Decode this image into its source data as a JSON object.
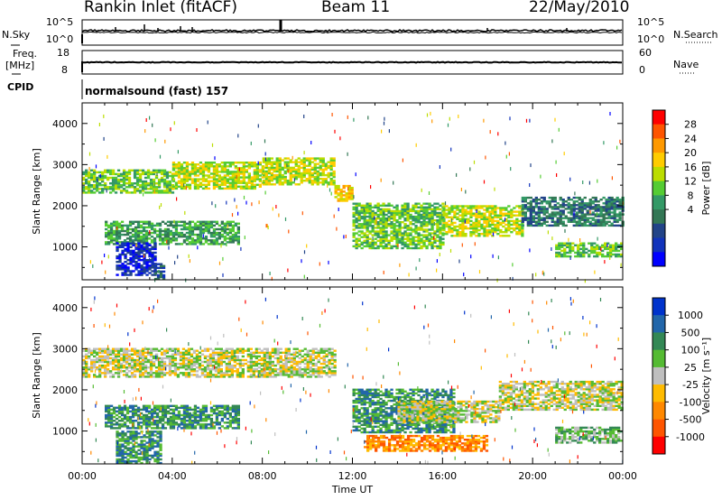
{
  "header": {
    "station": "Rankin Inlet (fitACF)",
    "beam": "Beam 11",
    "date": "22/May/2010"
  },
  "strips": {
    "nsky_label": "N.Sky",
    "nsky_ticks": [
      "10^5",
      "10^0"
    ],
    "nsearch_label": "N.Search",
    "nsearch_ticks": [
      "10^5",
      "10^0"
    ],
    "freq_label": "Freq.",
    "freq_unit": "[MHz]",
    "freq_ticks": [
      "18",
      "8"
    ],
    "nave_label": "Nave",
    "nave_ticks": [
      "60",
      "0"
    ],
    "cpid_label": "CPID",
    "cpid_value": "normalsound (fast) 157"
  },
  "colors": {
    "frame": "#000000",
    "background": "#ffffff",
    "ground_scatter": "#bfbfbf"
  },
  "chart_data": [
    {
      "type": "heatmap",
      "name": "power",
      "ylabel": "Slant Range [km]",
      "ylim": [
        200,
        4500
      ],
      "yticks": [
        1000,
        2000,
        3000,
        4000
      ],
      "xlim": [
        0,
        24
      ],
      "xticks": [
        "00:00",
        "04:00",
        "08:00",
        "12:00",
        "16:00",
        "20:00",
        "00:00"
      ],
      "colorbar_label": "Power [dB]",
      "colorbar_ticks": [
        "28",
        "24",
        "20",
        "16",
        "12",
        "8",
        "4"
      ],
      "colorbar_colors": [
        "#ff0000",
        "#ff5500",
        "#ff9900",
        "#ffcc00",
        "#bbdd00",
        "#55cc33",
        "#339966",
        "#337755",
        "#224488",
        "#1133bb",
        "#0000ff"
      ],
      "bands": [
        {
          "t0": 0.0,
          "t1": 4.0,
          "r0": 2300,
          "r1": 2850,
          "level": 5
        },
        {
          "t0": 4.0,
          "t1": 8.0,
          "r0": 2400,
          "r1": 3050,
          "level": 4
        },
        {
          "t0": 8.0,
          "t1": 11.2,
          "r0": 2500,
          "r1": 3150,
          "level": 4
        },
        {
          "t0": 11.2,
          "t1": 12.0,
          "r0": 2100,
          "r1": 2500,
          "level": 3
        },
        {
          "t0": 1.0,
          "t1": 7.0,
          "r0": 1050,
          "r1": 1600,
          "level": 6
        },
        {
          "t0": 1.5,
          "t1": 3.2,
          "r0": 300,
          "r1": 1100,
          "level": 9
        },
        {
          "t0": 3.2,
          "t1": 3.6,
          "r0": 200,
          "r1": 600,
          "level": 8
        },
        {
          "t0": 12.0,
          "t1": 16.0,
          "r0": 950,
          "r1": 2050,
          "level": 5
        },
        {
          "t0": 16.0,
          "t1": 19.5,
          "r0": 1250,
          "r1": 2000,
          "level": 4
        },
        {
          "t0": 19.5,
          "t1": 24.0,
          "r0": 1500,
          "r1": 2200,
          "level": 7
        },
        {
          "t0": 21.0,
          "t1": 24.0,
          "r0": 750,
          "r1": 1100,
          "level": 5
        }
      ]
    },
    {
      "type": "heatmap",
      "name": "velocity",
      "ylabel": "Slant Range [km]",
      "ylim": [
        200,
        4500
      ],
      "yticks": [
        1000,
        2000,
        3000,
        4000
      ],
      "xlim": [
        0,
        24
      ],
      "xticks": [
        "00:00",
        "04:00",
        "08:00",
        "12:00",
        "16:00",
        "20:00",
        "00:00"
      ],
      "xlabel": "Time UT",
      "colorbar_label": "Velocity [m s⁻¹]",
      "colorbar_ticks": [
        "1000",
        "500",
        "100",
        "25",
        "-25",
        "-100",
        "-500",
        "-1000"
      ],
      "colorbar_colors": [
        "#0033cc",
        "#2266aa",
        "#338855",
        "#55bb33",
        "#bfbfbf",
        "#ffbb00",
        "#ff8800",
        "#ff5500",
        "#ff0000"
      ],
      "bands": [
        {
          "t0": 0.0,
          "t1": 11.2,
          "r0": 2300,
          "r1": 3000,
          "level": 4
        },
        {
          "t0": 1.0,
          "t1": 7.0,
          "r0": 1050,
          "r1": 1600,
          "level": 2
        },
        {
          "t0": 1.5,
          "t1": 3.5,
          "r0": 200,
          "r1": 1000,
          "level": 2
        },
        {
          "t0": 12.0,
          "t1": 16.5,
          "r0": 950,
          "r1": 2000,
          "level": 2
        },
        {
          "t0": 14.0,
          "t1": 18.5,
          "r0": 1200,
          "r1": 1700,
          "level": 4
        },
        {
          "t0": 18.5,
          "t1": 24.0,
          "r0": 1500,
          "r1": 2200,
          "level": 4
        },
        {
          "t0": 12.5,
          "t1": 18.0,
          "r0": 500,
          "r1": 900,
          "level": 6
        },
        {
          "t0": 21.0,
          "t1": 24.0,
          "r0": 700,
          "r1": 1100,
          "level": 3
        }
      ]
    }
  ]
}
